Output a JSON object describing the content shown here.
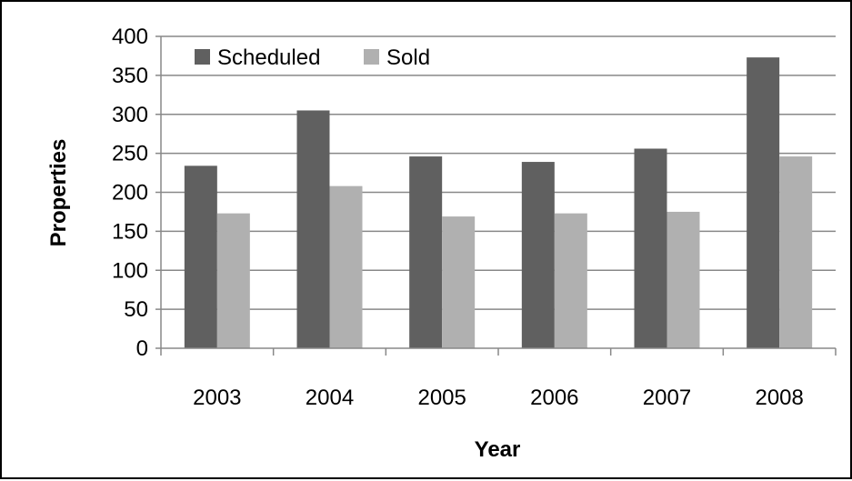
{
  "chart_data": {
    "type": "bar",
    "title": "",
    "xlabel": "Year",
    "ylabel": "Properties",
    "categories": [
      "2003",
      "2004",
      "2005",
      "2006",
      "2007",
      "2008"
    ],
    "series": [
      {
        "name": "Scheduled",
        "color": "#606060",
        "values": [
          234,
          305,
          246,
          239,
          256,
          373
        ]
      },
      {
        "name": "Sold",
        "color": "#b0b0b0",
        "values": [
          173,
          208,
          169,
          173,
          175,
          246
        ]
      }
    ],
    "ylim": [
      0,
      400
    ],
    "yticks": [
      0,
      50,
      100,
      150,
      200,
      250,
      300,
      350,
      400
    ],
    "grid": true,
    "gridline_color": "#888888",
    "legend_position": "top-left"
  }
}
